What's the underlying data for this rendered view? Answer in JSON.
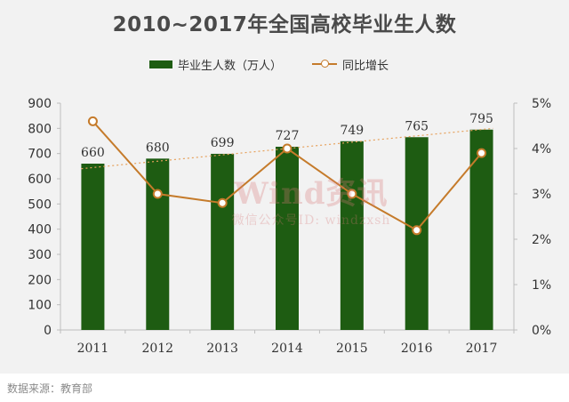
{
  "title": "2010~2017年全国高校毕业生人数",
  "source": "数据来源：教育部",
  "watermark": {
    "main": "Wind资讯",
    "sub": "微信公众号ID: windzxsh"
  },
  "colors": {
    "bar": "#1e5c12",
    "line": "#c57b2b",
    "trend": "#e6a15c",
    "background": "#f2f2f2"
  },
  "chart_data": {
    "type": "bar",
    "title": "2010~2017年全国高校毕业生人数",
    "categories": [
      "2011",
      "2012",
      "2013",
      "2014",
      "2015",
      "2016",
      "2017"
    ],
    "series": [
      {
        "name": "毕业生人数（万人）",
        "type": "bar",
        "axis": "left",
        "values": [
          660,
          680,
          699,
          727,
          749,
          765,
          795
        ]
      },
      {
        "name": "同比增长",
        "type": "line",
        "axis": "right",
        "values": [
          4.6,
          3.0,
          2.8,
          4.0,
          3.0,
          2.2,
          3.9
        ]
      }
    ],
    "trendline": {
      "of": "毕业生人数（万人）",
      "style": "dotted",
      "from": 640,
      "to": 800
    },
    "ylim_left": [
      0,
      900
    ],
    "yticks_left": [
      0,
      100,
      200,
      300,
      400,
      500,
      600,
      700,
      800,
      900
    ],
    "ylim_right": [
      0,
      5
    ],
    "yticks_right": [
      "0%",
      "1%",
      "2%",
      "3%",
      "4%",
      "5%"
    ],
    "data_labels": [
      "660",
      "680",
      "699",
      "727",
      "749",
      "765",
      "795"
    ],
    "legend_position": "top",
    "grid": false
  }
}
